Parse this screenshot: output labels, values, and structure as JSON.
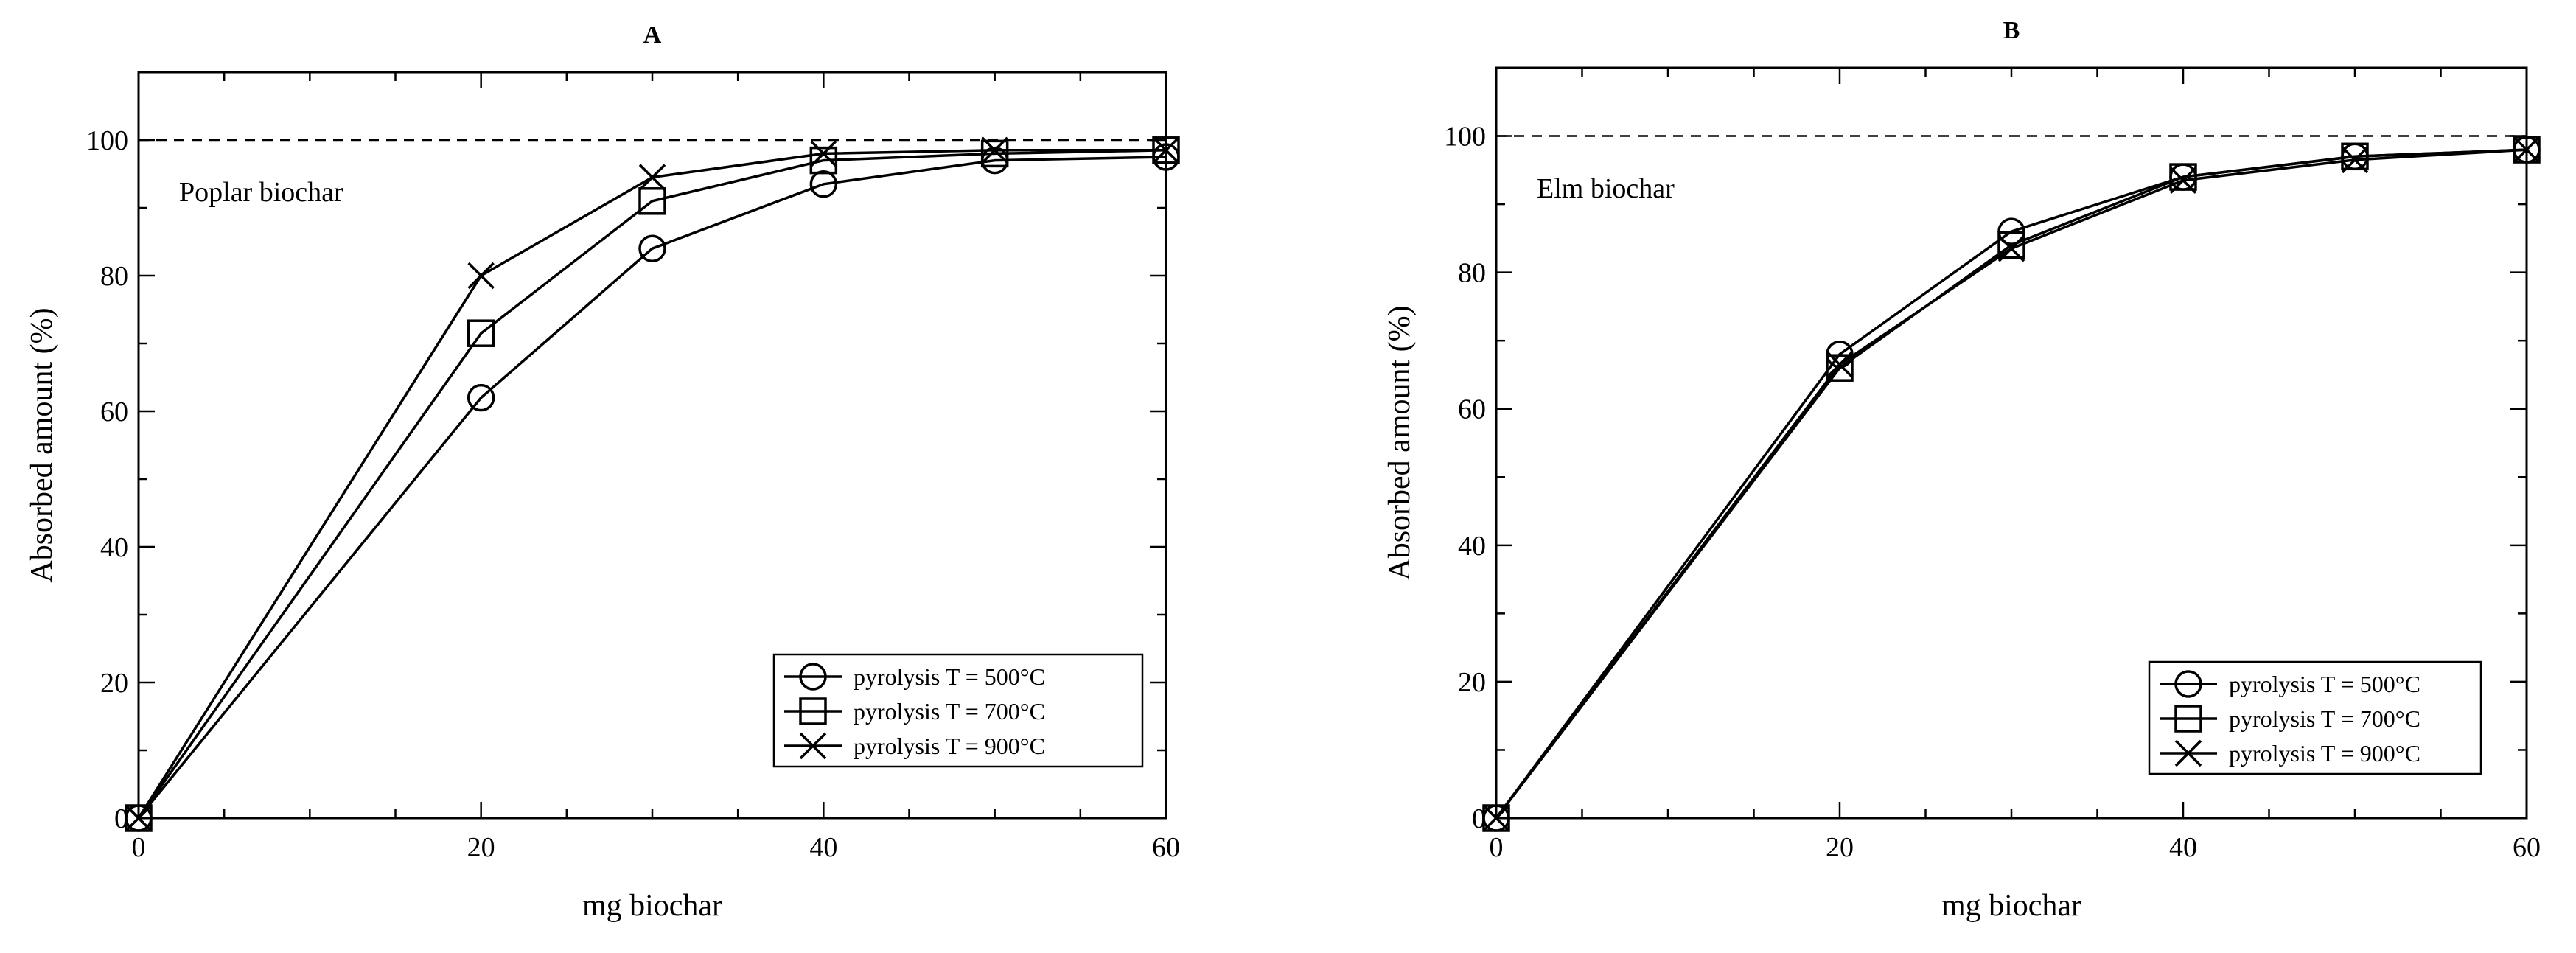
{
  "chart_data": [
    {
      "type": "line",
      "title": "A",
      "annotation": "Poplar biochar",
      "xlabel": "mg biochar",
      "ylabel": "Absorbed amount (%)",
      "xlim": [
        0,
        60
      ],
      "ylim": [
        0,
        110
      ],
      "xticks": [
        0,
        20,
        40,
        60
      ],
      "yticks": [
        0,
        20,
        40,
        60,
        80,
        100
      ],
      "reference_line": {
        "y": 100,
        "style": "dashed"
      },
      "legend_position": "bottom-right",
      "x": [
        0,
        20,
        30,
        40,
        50,
        60
      ],
      "series": [
        {
          "name": "pyrolysis T = 500°C",
          "marker": "circle",
          "values": [
            0,
            62,
            84,
            93.5,
            97,
            97.5
          ]
        },
        {
          "name": "pyrolysis T = 700°C",
          "marker": "square",
          "values": [
            0,
            71.5,
            91,
            97,
            98,
            98.5
          ]
        },
        {
          "name": "pyrolysis T = 900°C",
          "marker": "cross",
          "values": [
            0,
            80,
            94.5,
            98,
            98.5,
            98.5
          ]
        }
      ]
    },
    {
      "type": "line",
      "title": "B",
      "annotation": "Elm biochar",
      "xlabel": "mg biochar",
      "ylabel": "Absorbed amount (%)",
      "xlim": [
        0,
        60
      ],
      "ylim": [
        0,
        110
      ],
      "xticks": [
        0,
        20,
        40,
        60
      ],
      "yticks": [
        0,
        20,
        40,
        60,
        80,
        100
      ],
      "reference_line": {
        "y": 100,
        "style": "dashed"
      },
      "legend_position": "bottom-right",
      "x": [
        0,
        20,
        30,
        40,
        50,
        60
      ],
      "series": [
        {
          "name": "pyrolysis T = 500°C",
          "marker": "circle",
          "values": [
            0,
            68,
            86,
            94,
            97,
            98
          ]
        },
        {
          "name": "pyrolysis T = 700°C",
          "marker": "square",
          "values": [
            0,
            66,
            84,
            94,
            97,
            98
          ]
        },
        {
          "name": "pyrolysis T = 900°C",
          "marker": "cross",
          "values": [
            0,
            66.5,
            83.5,
            93.5,
            96.5,
            98
          ]
        }
      ]
    }
  ]
}
